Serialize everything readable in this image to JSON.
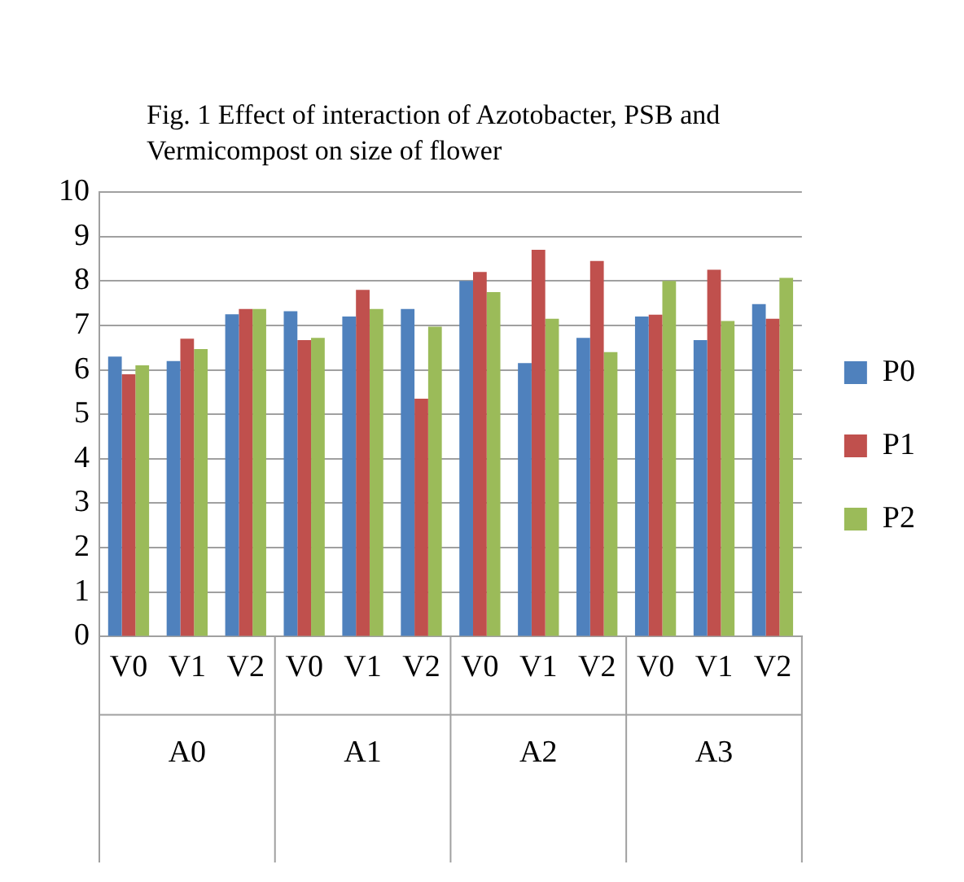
{
  "chart_data": {
    "type": "bar",
    "title": "Fig. 1 Effect of interaction of Azotobacter, PSB and Vermicompost on size of flower",
    "categories": [
      "V0",
      "V1",
      "V2",
      "V0",
      "V1",
      "V2",
      "V0",
      "V1",
      "V2",
      "V0",
      "V1",
      "V2"
    ],
    "annotations": [
      "A0",
      "A1",
      "A2",
      "A3"
    ],
    "series": [
      {
        "name": "P0",
        "color": "#4f81bd",
        "values": [
          6.3,
          6.2,
          7.25,
          7.32,
          7.2,
          7.37,
          8.0,
          6.15,
          6.72,
          7.2,
          6.67,
          7.48
        ]
      },
      {
        "name": "P1",
        "color": "#c0504d",
        "values": [
          5.9,
          6.7,
          7.37,
          6.67,
          7.8,
          5.35,
          8.2,
          8.7,
          8.45,
          7.24,
          8.25,
          7.15
        ]
      },
      {
        "name": "P2",
        "color": "#9bbb59",
        "values": [
          6.1,
          6.47,
          7.37,
          6.72,
          7.37,
          6.97,
          7.75,
          7.15,
          6.4,
          8.0,
          7.1,
          8.07
        ]
      }
    ],
    "ylim": [
      0,
      10
    ],
    "yticks": [
      0,
      1,
      2,
      3,
      4,
      5,
      6,
      7,
      8,
      9,
      10
    ],
    "grid": "y",
    "legend": "right"
  }
}
